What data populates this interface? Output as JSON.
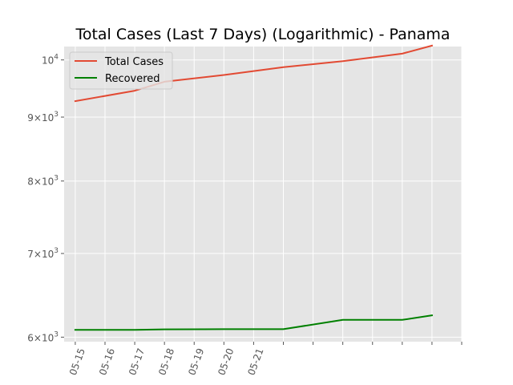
{
  "chart_data": {
    "type": "line",
    "title": "Total Cases (Last 7 Days) (Logarithmic) - Panama",
    "xlabel": "",
    "ylabel": "",
    "y_scale": "log",
    "ylim": [
      5950,
      10250
    ],
    "x_range": [
      "2020-05-14T15:00",
      "2020-05-28T00:00"
    ],
    "x_tick_dates": [
      "2020-05-15",
      "2020-05-16",
      "2020-05-17",
      "2020-05-18",
      "2020-05-19",
      "2020-05-20",
      "2020-05-21",
      "2020-05-22",
      "2020-05-23",
      "2020-05-24",
      "2020-05-25",
      "2020-05-26",
      "2020-05-27",
      "2020-05-28"
    ],
    "x_tick_labels": [
      "05-15",
      "05-16",
      "05-17",
      "05-18",
      "05-19",
      "05-20",
      "05-21",
      "",
      "",
      "",
      "",
      "",
      "",
      ""
    ],
    "y_ticks": [
      {
        "value": 6000,
        "label_base": "6",
        "label_mult": "×",
        "label_pow": "10",
        "label_exp": "3"
      },
      {
        "value": 7000,
        "label_base": "7",
        "label_mult": "×",
        "label_pow": "10",
        "label_exp": "3"
      },
      {
        "value": 8000,
        "label_base": "8",
        "label_mult": "×",
        "label_pow": "10",
        "label_exp": "3"
      },
      {
        "value": 9000,
        "label_base": "9",
        "label_mult": "×",
        "label_pow": "10",
        "label_exp": "3"
      },
      {
        "value": 10000,
        "label_base": "",
        "label_mult": "",
        "label_pow": "10",
        "label_exp": "4"
      }
    ],
    "grid": true,
    "legend_position": "top-left",
    "x_dates": [
      "2020-05-15",
      "2020-05-17",
      "2020-05-18",
      "2020-05-20",
      "2020-05-22",
      "2020-05-24",
      "2020-05-26",
      "2020-05-27"
    ],
    "series": [
      {
        "name": "Total Cases",
        "color": "#E24A33",
        "values": [
          9268,
          9449,
          9606,
          9726,
          9867,
          9977,
          10116,
          10267
        ]
      },
      {
        "name": "Recovered",
        "color": "#008000",
        "values": [
          6082,
          6082,
          6087,
          6089,
          6089,
          6194,
          6194,
          6246
        ]
      }
    ],
    "colors": {
      "plot_background": "#E5E5E5",
      "grid": "#FFFFFF",
      "tick_text": "#555555"
    }
  }
}
